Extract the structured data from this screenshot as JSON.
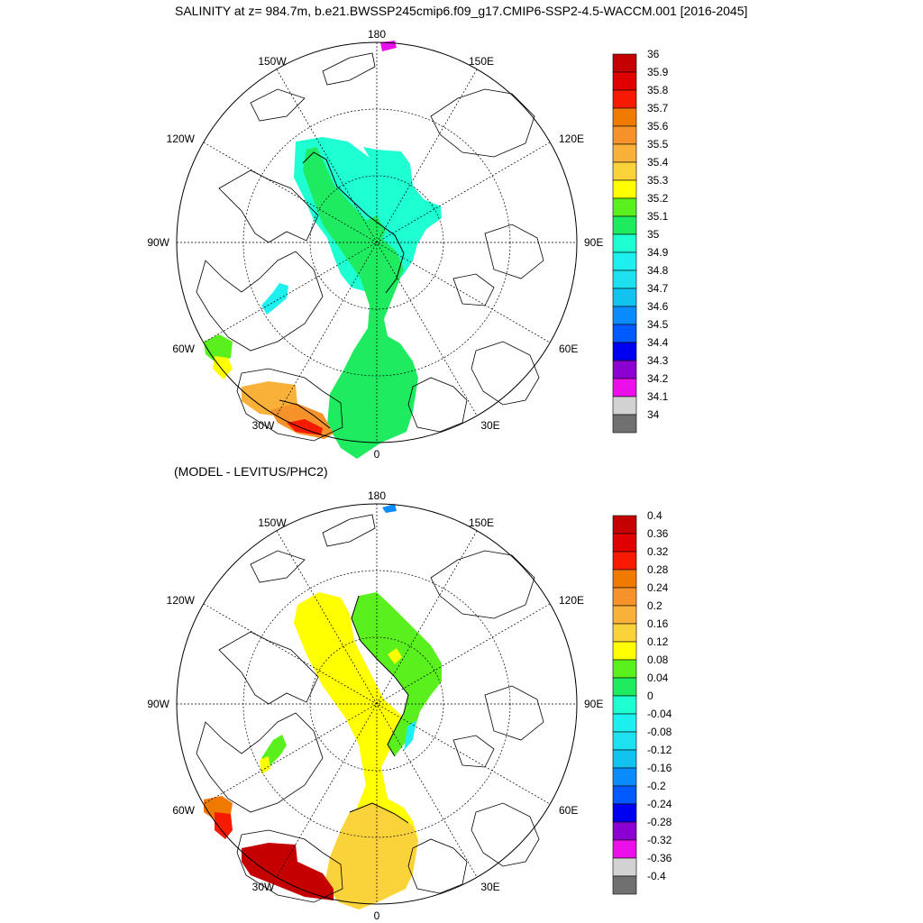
{
  "figure": {
    "title": "SALINITY at z= 984.7m, b.e21.BWSSP245cmip6.f09_g17.CMIP6-SSP2-4.5-WACCM.001 [2016-2045]",
    "subtitle": "(MODEL - LEVITUS/PHC2)"
  },
  "maps": [
    {
      "projection": "north polar stereographic",
      "lon_labels": [
        "180",
        "150E",
        "120E",
        "90E",
        "60E",
        "30E",
        "0",
        "30W",
        "60W",
        "90W",
        "120W",
        "150W"
      ],
      "colorbar": {
        "levels": [
          "36",
          "35.9",
          "35.8",
          "35.7",
          "35.6",
          "35.5",
          "35.4",
          "35.3",
          "35.2",
          "35.1",
          "35",
          "34.9",
          "34.8",
          "34.7",
          "34.6",
          "34.5",
          "34.4",
          "34.3",
          "34.2",
          "34.1",
          "34"
        ],
        "colors": [
          "#c40000",
          "#e00000",
          "#f51a00",
          "#f07a00",
          "#f5922a",
          "#fab13a",
          "#fad23a",
          "#ffff00",
          "#5af01e",
          "#1eeb5f",
          "#1effd2",
          "#1ef0f0",
          "#1ee1f0",
          "#12c3f0",
          "#0a8cff",
          "#005aff",
          "#0000f0",
          "#8c00d2",
          "#eb0feb",
          "#d2d2d2",
          "#707070"
        ]
      }
    },
    {
      "projection": "north polar stereographic",
      "lon_labels": [
        "180",
        "150E",
        "120E",
        "90E",
        "60E",
        "30E",
        "0",
        "30W",
        "60W",
        "90W",
        "120W",
        "150W"
      ],
      "colorbar": {
        "levels": [
          "0.4",
          "0.36",
          "0.32",
          "0.28",
          "0.24",
          "0.2",
          "0.16",
          "0.12",
          "0.08",
          "0.04",
          "0",
          "-0.04",
          "-0.08",
          "-0.12",
          "-0.16",
          "-0.2",
          "-0.24",
          "-0.28",
          "-0.32",
          "-0.36",
          "-0.4"
        ],
        "colors": [
          "#c40000",
          "#e00000",
          "#f51a00",
          "#f07a00",
          "#f5922a",
          "#fab13a",
          "#fad23a",
          "#ffff00",
          "#5af01e",
          "#1eeb5f",
          "#1effd2",
          "#1ef0f0",
          "#1ee1f0",
          "#12c3f0",
          "#0a8cff",
          "#005aff",
          "#0000f0",
          "#8c00d2",
          "#eb0feb",
          "#d2d2d2",
          "#707070"
        ]
      }
    }
  ]
}
